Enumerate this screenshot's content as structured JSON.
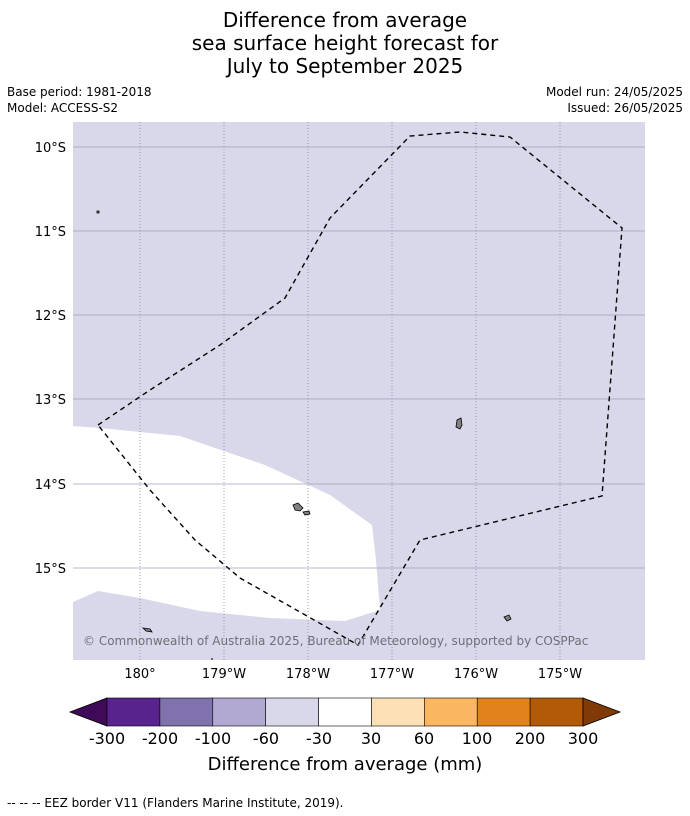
{
  "title": {
    "line1": "Difference from average",
    "line2": "sea surface height forecast for",
    "line3": "July to September 2025"
  },
  "meta": {
    "base_period": "Base period: 1981-2018",
    "model": "Model: ACCESS-S2",
    "model_run": "Model run: 24/05/2025",
    "issued": "Issued: 26/05/2025"
  },
  "map": {
    "lat_labels": [
      "10°S",
      "11°S",
      "12°S",
      "13°S",
      "14°S",
      "15°S"
    ],
    "lon_labels": [
      "180°",
      "179°W",
      "178°W",
      "177°W",
      "176°W",
      "175°W"
    ],
    "copyright": "© Commonwealth of Australia 2025, Bureau of Meteorology, supported by COSPPac",
    "background_color": "#d8d8ea",
    "neutral_band_color": "#ffffff"
  },
  "colorbar": {
    "title": "Difference from average (mm)",
    "ticks": [
      "-300",
      "-200",
      "-100",
      "-60",
      "-30",
      "30",
      "60",
      "100",
      "200",
      "300"
    ],
    "colors": [
      "#3f0a57",
      "#58238c",
      "#8072ac",
      "#b1a9d1",
      "#d8d8ea",
      "#ffffff",
      "#fde0b6",
      "#fbb661",
      "#e1821a",
      "#b35a08",
      "#7f3a08"
    ]
  },
  "legend": {
    "eez_line": "-- -- -- EEZ border V11 (Flanders Marine Institute, 2019)."
  }
}
